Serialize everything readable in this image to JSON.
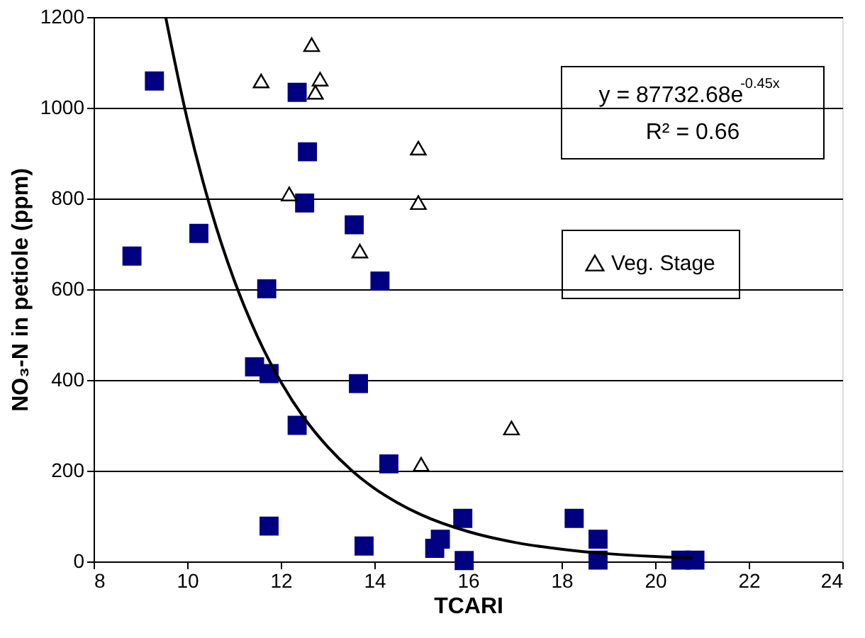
{
  "chart_data": {
    "type": "scatter",
    "xlabel": "TCARI",
    "ylabel": "NO₃-N in petiole (ppm)",
    "xlim": [
      8,
      24
    ],
    "xticks": [
      8,
      10,
      12,
      14,
      16,
      18,
      20,
      22,
      24
    ],
    "ylim": [
      0,
      1200
    ],
    "yticks": [
      0,
      200,
      400,
      600,
      800,
      1000,
      1200
    ],
    "grid": "y",
    "legend": "right",
    "annotations": [
      "y = 87732.68e$^{-0.45x}$",
      "R² = 0.66"
    ],
    "series": [
      {
        "type": "scatter",
        "marker": "square",
        "color": "#000080",
        "x": [
          9.3,
          12.35,
          12.57,
          12.51,
          13.57,
          10.25,
          8.82,
          11.7,
          14.12,
          11.44,
          11.75,
          13.66,
          12.35,
          14.31,
          11.75,
          13.78,
          15.89,
          15.41,
          15.29,
          15.92,
          18.27,
          18.78,
          18.78,
          20.55,
          20.85
        ],
        "values": [
          1059,
          1034,
          903,
          790,
          742,
          723,
          673,
          601,
          618,
          429,
          414,
          392,
          300,
          215,
          78,
          34,
          95,
          49,
          29,
          2,
          95,
          49,
          3,
          3,
          3
        ]
      },
      {
        "type": "scatter",
        "marker": "triangle",
        "name": "Veg. Stage",
        "color": "#000000",
        "x": [
          12.66,
          11.58,
          12.84,
          12.74,
          14.94,
          14.94,
          12.18,
          13.69,
          15.0,
          16.93
        ],
        "values": [
          1139,
          1059,
          1063,
          1034,
          911,
          791,
          810,
          684,
          214,
          294
        ]
      },
      {
        "type": "line",
        "marker": "none",
        "line_style": "solid",
        "color": "#000000",
        "x": [
          9.54,
          10,
          10.5,
          11,
          11.5,
          12,
          12.5,
          13,
          13.5,
          14,
          14.5,
          15,
          16,
          17,
          18,
          19,
          20,
          20.8
        ],
        "values": [
          1200,
          975,
          778,
          621,
          496,
          396,
          316,
          253,
          202,
          161,
          129,
          103,
          66,
          42,
          27,
          17,
          11,
          8
        ]
      }
    ]
  }
}
